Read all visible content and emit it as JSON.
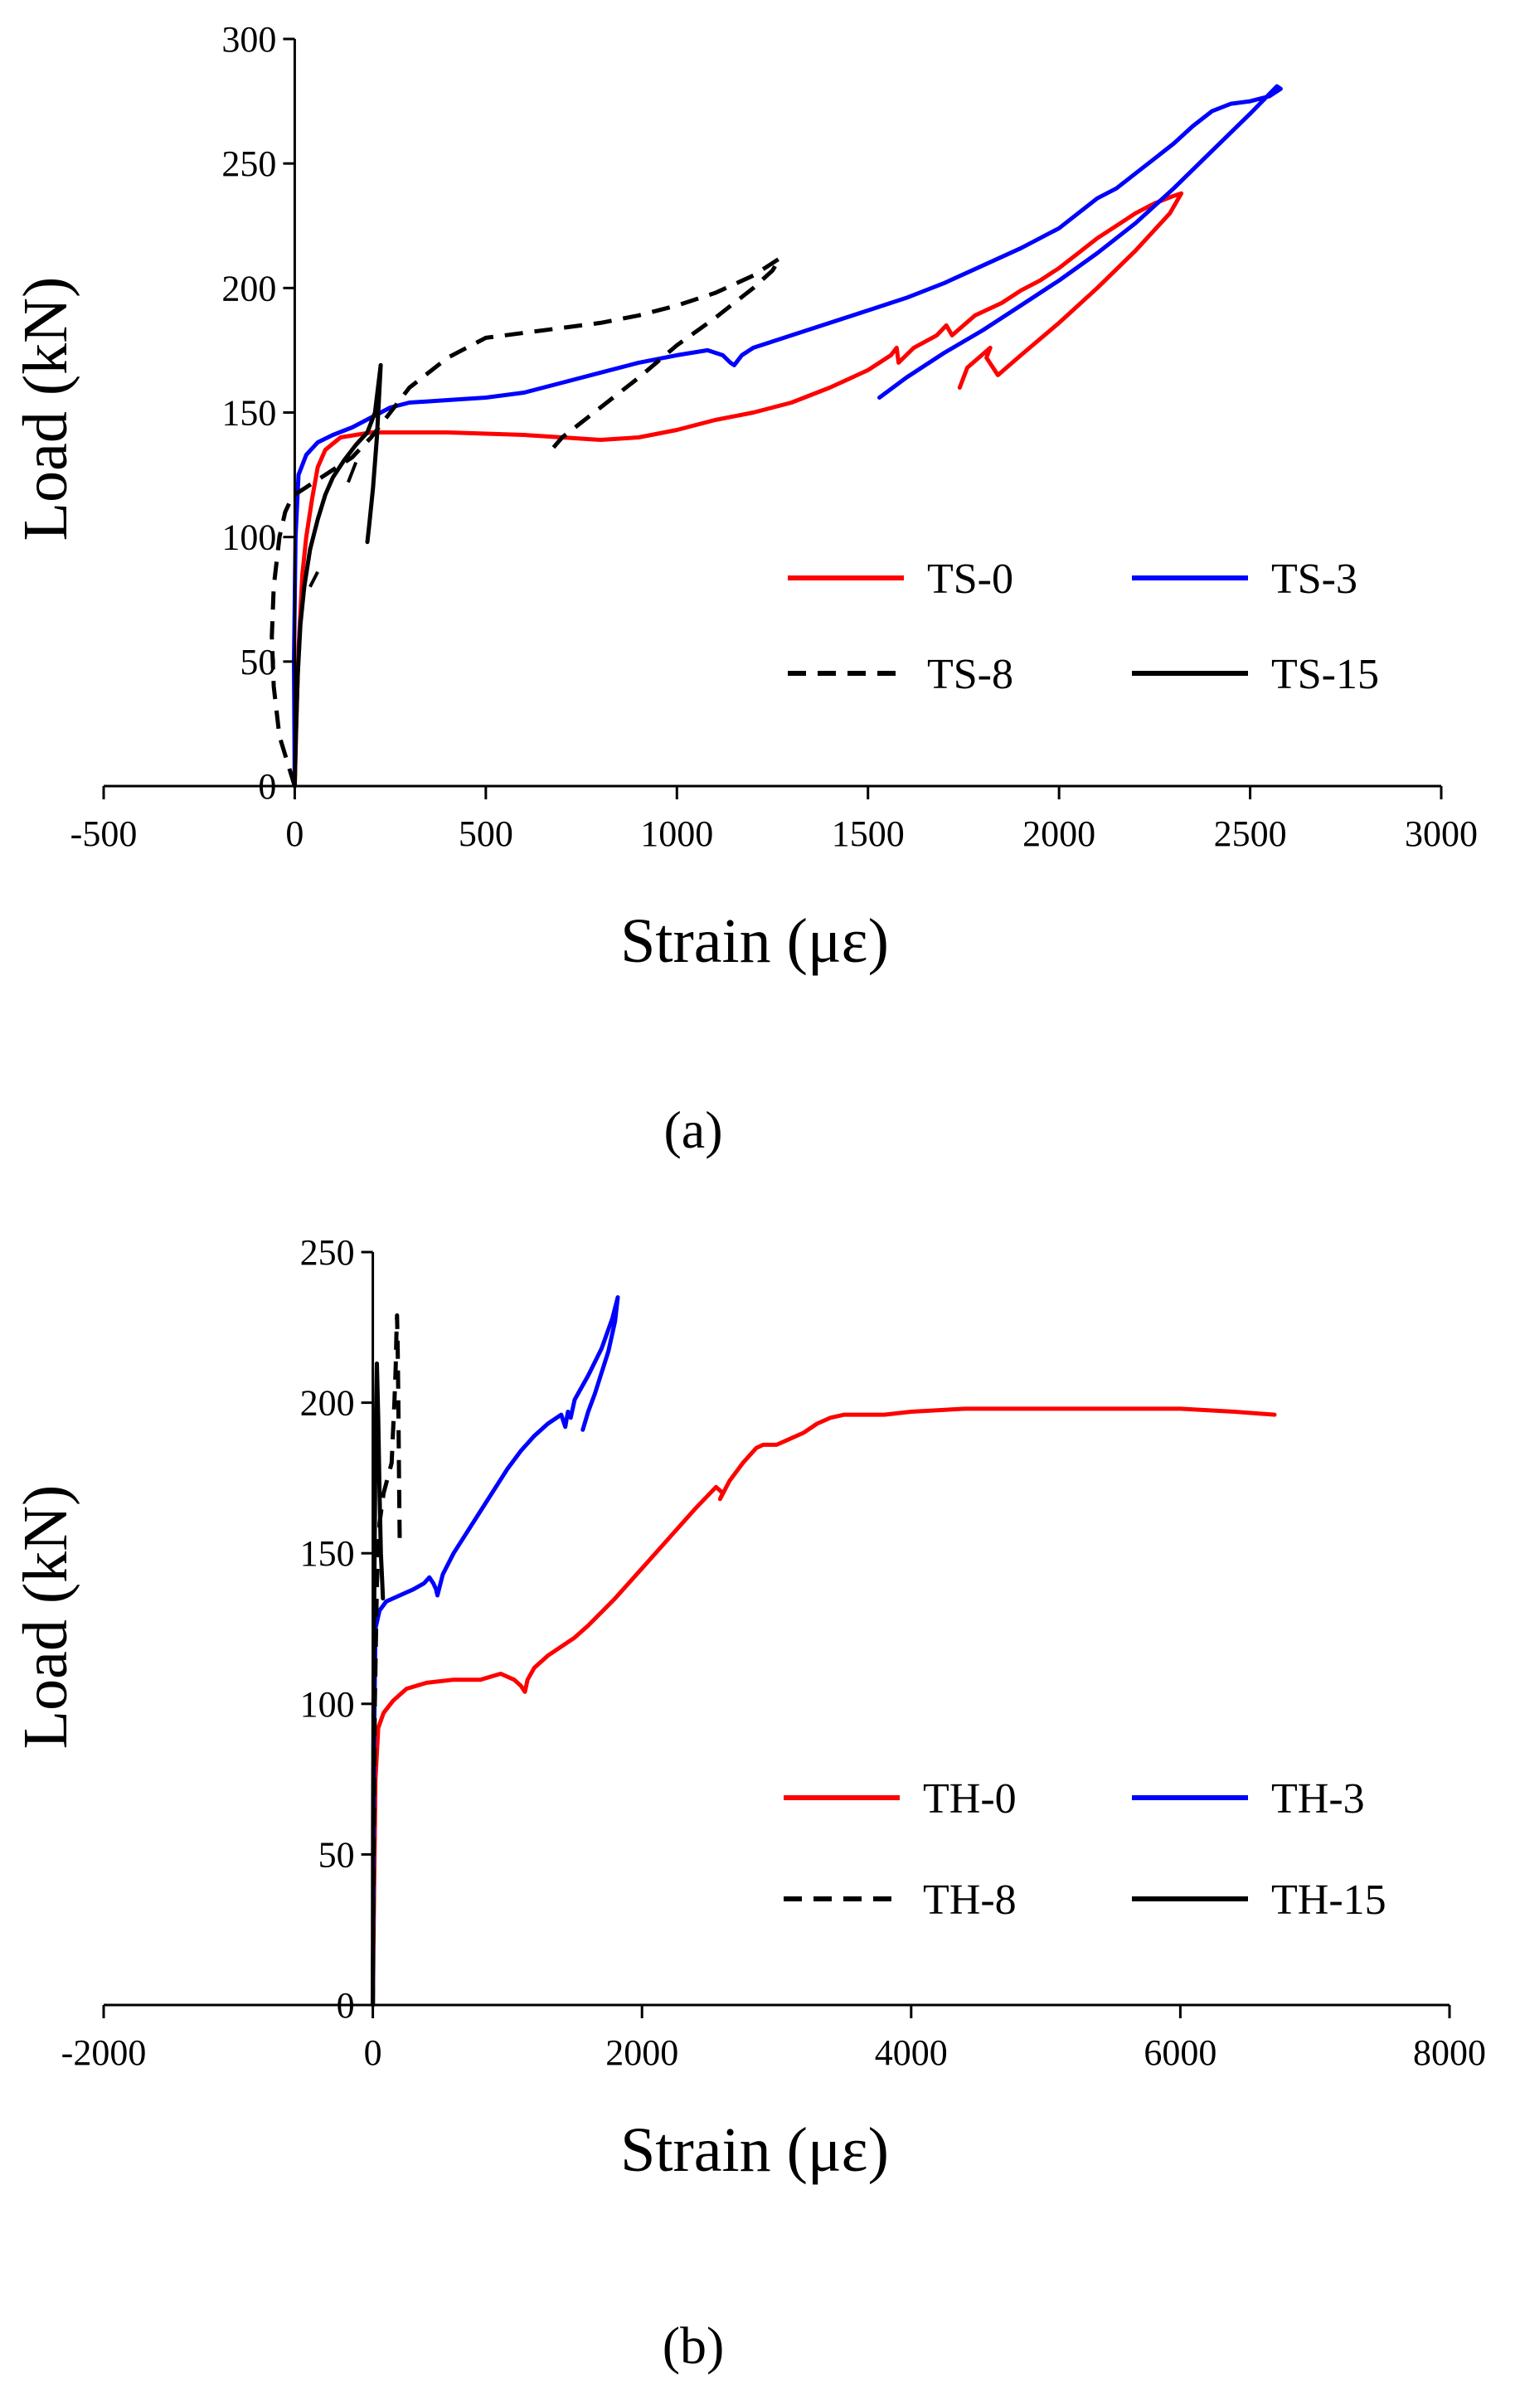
{
  "chart_data": [
    {
      "type": "line",
      "caption": "(a)",
      "xlabel": "Strain (με)",
      "ylabel": "Load (kN)",
      "xlim": [
        -500,
        3000
      ],
      "ylim": [
        0,
        300
      ],
      "xticks": [
        -500,
        0,
        500,
        1000,
        1500,
        2000,
        2500,
        3000
      ],
      "yticks": [
        0,
        50,
        100,
        150,
        200,
        250,
        300
      ],
      "grid": false,
      "legend_position": "right",
      "series": [
        {
          "name": "TS-0",
          "color": "#ff0000",
          "dash": "solid",
          "x": [
            0,
            5,
            10,
            20,
            30,
            45,
            60,
            80,
            120,
            200,
            400,
            600,
            700,
            800,
            900,
            1000,
            1100,
            1200,
            1300,
            1400,
            1500,
            1560,
            1575,
            1580,
            1620,
            1680,
            1705,
            1720,
            1780,
            1850,
            1900,
            1950,
            2000,
            2050,
            2100,
            2150,
            2200,
            2250,
            2300,
            2320,
            2290,
            2200,
            2100,
            2000,
            1900,
            1840,
            1810,
            1820,
            1760,
            1740
          ],
          "y": [
            0,
            30,
            55,
            85,
            100,
            115,
            128,
            135,
            140,
            142,
            142,
            141,
            140,
            139,
            140,
            143,
            147,
            150,
            154,
            160,
            167,
            173,
            176,
            170,
            176,
            181,
            185,
            181,
            189,
            194,
            199,
            203,
            208,
            214,
            220,
            225,
            230,
            234,
            237,
            238,
            230,
            215,
            200,
            186,
            173,
            165,
            172,
            176,
            168,
            160
          ]
        },
        {
          "name": "TS-3",
          "color": "#0000ff",
          "dash": "solid",
          "x": [
            0,
            -2,
            2,
            10,
            30,
            60,
            100,
            150,
            200,
            250,
            300,
            400,
            500,
            600,
            700,
            800,
            900,
            1000,
            1080,
            1120,
            1140,
            1150,
            1170,
            1200,
            1300,
            1400,
            1500,
            1600,
            1700,
            1800,
            1900,
            2000,
            2050,
            2100,
            2150,
            2200,
            2250,
            2300,
            2350,
            2400,
            2450,
            2500,
            2550,
            2580,
            2570,
            2500,
            2400,
            2300,
            2200,
            2100,
            2000,
            1900,
            1800,
            1700,
            1600,
            1530
          ],
          "y": [
            0,
            50,
            100,
            125,
            133,
            138,
            141,
            144,
            148,
            152,
            154,
            155,
            156,
            158,
            162,
            166,
            170,
            173,
            175,
            173,
            170,
            169,
            173,
            176,
            181,
            186,
            191,
            196,
            202,
            209,
            216,
            224,
            230,
            236,
            240,
            246,
            252,
            258,
            265,
            271,
            274,
            275,
            277,
            280,
            281,
            270,
            255,
            240,
            226,
            214,
            203,
            193,
            183,
            174,
            164,
            156
          ]
        },
        {
          "name": "TS-8",
          "color": "#000000",
          "dash": "dashed",
          "x": [
            0,
            -20,
            -40,
            -55,
            -60,
            -55,
            -40,
            -25,
            -10,
            0,
            30,
            80,
            150,
            200,
            250,
            300,
            400,
            500,
            600,
            700,
            800,
            900,
            1000,
            1100,
            1200,
            1270,
            1250,
            1200,
            1100,
            1000,
            900,
            800,
            700,
            660
          ],
          "y": [
            0,
            10,
            20,
            40,
            60,
            80,
            100,
            110,
            115,
            117,
            120,
            125,
            132,
            140,
            150,
            160,
            172,
            180,
            182,
            184,
            186,
            189,
            193,
            198,
            205,
            212,
            207,
            200,
            188,
            177,
            164,
            152,
            140,
            133
          ],
          "annotation_marks": [
            {
              "x": [
                40,
                60
              ],
              "y": [
                80,
                86
              ]
            },
            {
              "x": [
                140,
                160
              ],
              "y": [
                122,
                130
              ]
            }
          ]
        },
        {
          "name": "TS-15",
          "color": "#000000",
          "dash": "solid",
          "x": [
            0,
            3,
            8,
            15,
            25,
            40,
            60,
            80,
            100,
            130,
            160,
            190,
            210,
            225,
            222,
            215,
            205,
            195,
            190
          ],
          "y": [
            0,
            20,
            45,
            65,
            80,
            95,
            107,
            117,
            124,
            131,
            137,
            142,
            150,
            169,
            160,
            140,
            120,
            105,
            98
          ]
        }
      ]
    },
    {
      "type": "line",
      "caption": "(b)",
      "xlabel": "Strain (με)",
      "ylabel": "Load (kN)",
      "xlim": [
        -2000,
        8000
      ],
      "ylim": [
        0,
        250
      ],
      "xticks": [
        -2000,
        0,
        2000,
        4000,
        6000,
        8000
      ],
      "yticks": [
        0,
        50,
        100,
        150,
        200,
        250
      ],
      "grid": false,
      "legend_position": "right",
      "series": [
        {
          "name": "TH-0",
          "color": "#ff0000",
          "dash": "solid",
          "x": [
            0,
            10,
            20,
            40,
            80,
            150,
            250,
            400,
            600,
            800,
            950,
            1050,
            1100,
            1130,
            1150,
            1200,
            1300,
            1400,
            1500,
            1600,
            1800,
            2000,
            2200,
            2400,
            2550,
            2600,
            2580,
            2650,
            2750,
            2850,
            2900,
            3000,
            3100,
            3200,
            3300,
            3400,
            3500,
            3600,
            3800,
            4000,
            4400,
            4800,
            5200,
            5600,
            6000,
            6400,
            6700
          ],
          "y": [
            0,
            40,
            75,
            92,
            97,
            101,
            105,
            107,
            108,
            108,
            110,
            108,
            106,
            104,
            108,
            112,
            116,
            119,
            122,
            126,
            135,
            145,
            155,
            165,
            172,
            170,
            168,
            174,
            180,
            185,
            186,
            186,
            188,
            190,
            193,
            195,
            196,
            196,
            196,
            197,
            198,
            198,
            198,
            198,
            198,
            197,
            196
          ]
        },
        {
          "name": "TH-3",
          "color": "#0000ff",
          "dash": "solid",
          "x": [
            0,
            5,
            10,
            20,
            50,
            100,
            200,
            300,
            380,
            420,
            450,
            470,
            480,
            520,
            600,
            700,
            800,
            900,
            1000,
            1100,
            1200,
            1300,
            1400,
            1430,
            1450,
            1470,
            1500,
            1600,
            1700,
            1780,
            1820,
            1800,
            1750,
            1700,
            1650,
            1600,
            1560
          ],
          "y": [
            0,
            40,
            90,
            125,
            131,
            134,
            136,
            138,
            140,
            142,
            140,
            138,
            136,
            143,
            150,
            157,
            164,
            171,
            178,
            184,
            189,
            193,
            196,
            192,
            197,
            195,
            201,
            209,
            218,
            228,
            235,
            227,
            217,
            210,
            203,
            197,
            191
          ]
        },
        {
          "name": "TH-8",
          "color": "#000000",
          "dash": "dashed",
          "x": [
            0,
            5,
            15,
            30,
            50,
            80,
            110,
            140,
            150,
            160,
            170,
            175,
            180,
            185,
            190,
            195,
            200
          ],
          "y": [
            0,
            40,
            100,
            140,
            160,
            170,
            175,
            180,
            190,
            200,
            212,
            222,
            229,
            218,
            200,
            175,
            152
          ]
        },
        {
          "name": "TH-15",
          "color": "#000000",
          "dash": "solid",
          "x": [
            0,
            2,
            5,
            10,
            15,
            20,
            25,
            30,
            40,
            50,
            60,
            70,
            75
          ],
          "y": [
            0,
            60,
            100,
            130,
            160,
            185,
            200,
            213,
            195,
            170,
            150,
            140,
            135
          ]
        }
      ]
    }
  ]
}
